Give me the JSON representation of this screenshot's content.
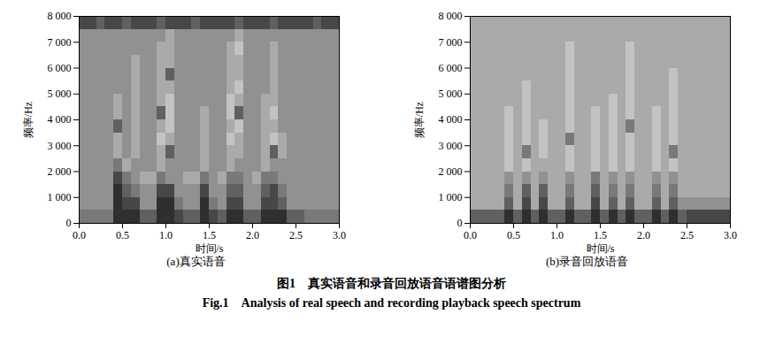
{
  "caption": "图1　真实语音和录音回放语音语谱图分析",
  "caption_en": "Fig.1　Analysis of real speech and recording playback speech spectrum",
  "chart_data": [
    {
      "type": "heatmap",
      "title": "(a)真实语音",
      "x_label": "时间/s",
      "y_label": "频率/Hz",
      "xlim": [
        0,
        3
      ],
      "ylim": [
        0,
        8000
      ],
      "xticks": [
        {
          "value": 0,
          "label": "0.0"
        },
        {
          "value": 0.5,
          "label": "0.5"
        },
        {
          "value": 1,
          "label": "1.0"
        },
        {
          "value": 1.5,
          "label": "1.5"
        },
        {
          "value": 2,
          "label": "2.0"
        },
        {
          "value": 2.5,
          "label": "2.5"
        },
        {
          "value": 3,
          "label": "3.0"
        }
      ],
      "yticks": [
        0,
        {
          "value": 1000,
          "label": "1 000"
        },
        {
          "value": 2000,
          "label": "2 000"
        },
        {
          "value": 3000,
          "label": "3 000"
        },
        {
          "value": 4000,
          "label": "4 000"
        },
        {
          "value": 5000,
          "label": "5 000"
        },
        {
          "value": 6000,
          "label": "6 000"
        },
        {
          "value": 7000,
          "label": "7 000"
        },
        {
          "value": 8000,
          "label": "8 000"
        }
      ],
      "x_edges": [
        0,
        0.1,
        0.2,
        0.3,
        0.4,
        0.5,
        0.6,
        0.7,
        0.8,
        0.9,
        1,
        1.1,
        1.2,
        1.3,
        1.4,
        1.5,
        1.6,
        1.7,
        1.8,
        1.9,
        2,
        2.1,
        2.2,
        2.3,
        2.4,
        2.5,
        2.6,
        2.7,
        2.8,
        2.9,
        3
      ],
      "y_edges": [
        0,
        500,
        1000,
        1500,
        2000,
        2500,
        3000,
        3500,
        4000,
        4500,
        5000,
        5500,
        6000,
        6500,
        7000,
        7500,
        8000
      ],
      "zlim": [
        0,
        9
      ],
      "cells": [
        [
          5,
          5,
          5,
          5,
          8,
          8,
          8,
          6,
          6,
          8,
          8,
          7,
          6,
          6,
          8,
          7,
          6,
          8,
          8,
          6,
          6,
          8,
          8,
          8,
          6,
          6,
          5,
          5,
          5,
          5
        ],
        [
          4,
          4,
          4,
          4,
          8,
          7,
          7,
          4,
          4,
          8,
          8,
          5,
          4,
          4,
          8,
          5,
          4,
          7,
          7,
          4,
          4,
          7,
          7,
          6,
          4,
          4,
          4,
          4,
          4,
          4
        ],
        [
          4,
          4,
          4,
          4,
          8,
          6,
          5,
          4,
          4,
          7,
          7,
          4,
          4,
          4,
          7,
          4,
          4,
          6,
          6,
          4,
          4,
          6,
          7,
          5,
          4,
          4,
          4,
          4,
          4,
          4
        ],
        [
          4,
          4,
          4,
          4,
          7,
          5,
          4,
          3,
          3,
          5,
          4,
          4,
          3,
          3,
          5,
          4,
          3,
          5,
          5,
          4,
          3,
          5,
          5,
          4,
          4,
          4,
          4,
          4,
          4,
          4
        ],
        [
          4,
          4,
          4,
          4,
          5,
          3,
          4,
          4,
          4,
          3,
          4,
          4,
          4,
          4,
          3,
          4,
          4,
          3,
          4,
          4,
          4,
          3,
          4,
          4,
          4,
          4,
          4,
          4,
          4,
          4
        ],
        [
          4,
          4,
          4,
          4,
          3,
          4,
          3,
          4,
          4,
          3,
          6,
          4,
          4,
          4,
          3,
          4,
          4,
          3,
          3,
          4,
          4,
          3,
          6,
          3,
          4,
          4,
          4,
          4,
          4,
          4
        ],
        [
          4,
          4,
          4,
          4,
          3,
          4,
          3,
          4,
          4,
          2,
          3,
          4,
          4,
          4,
          3,
          4,
          4,
          2,
          3,
          4,
          4,
          3,
          2,
          3,
          4,
          4,
          4,
          4,
          4,
          4
        ],
        [
          4,
          4,
          4,
          4,
          6,
          4,
          3,
          4,
          4,
          3,
          2,
          4,
          4,
          4,
          3,
          4,
          4,
          3,
          2,
          4,
          4,
          3,
          3,
          4,
          4,
          4,
          4,
          4,
          4,
          4
        ],
        [
          4,
          4,
          4,
          4,
          3,
          4,
          3,
          4,
          4,
          6,
          2,
          4,
          4,
          4,
          3,
          4,
          4,
          2,
          6,
          4,
          4,
          3,
          2,
          4,
          4,
          4,
          4,
          4,
          4,
          4
        ],
        [
          4,
          4,
          4,
          4,
          3,
          4,
          3,
          4,
          4,
          3,
          2,
          4,
          4,
          4,
          4,
          4,
          4,
          2,
          3,
          4,
          4,
          3,
          3,
          4,
          4,
          4,
          4,
          4,
          4,
          4
        ],
        [
          4,
          4,
          4,
          4,
          4,
          4,
          3,
          4,
          4,
          3,
          3,
          4,
          4,
          4,
          4,
          4,
          4,
          3,
          2,
          4,
          4,
          4,
          3,
          4,
          4,
          4,
          4,
          4,
          4,
          4
        ],
        [
          4,
          4,
          4,
          4,
          4,
          4,
          3,
          4,
          4,
          3,
          6,
          4,
          4,
          4,
          4,
          4,
          4,
          3,
          3,
          4,
          4,
          4,
          3,
          4,
          4,
          4,
          4,
          4,
          4,
          4
        ],
        [
          4,
          4,
          4,
          4,
          4,
          4,
          3,
          4,
          4,
          3,
          3,
          4,
          4,
          4,
          4,
          4,
          4,
          3,
          3,
          4,
          4,
          4,
          3,
          4,
          4,
          4,
          4,
          4,
          4,
          4
        ],
        [
          4,
          4,
          4,
          4,
          4,
          4,
          4,
          4,
          4,
          3,
          3,
          4,
          4,
          4,
          4,
          4,
          4,
          3,
          2,
          4,
          4,
          4,
          3,
          4,
          4,
          4,
          4,
          4,
          4,
          4
        ],
        [
          4,
          4,
          4,
          4,
          4,
          4,
          4,
          4,
          4,
          4,
          3,
          4,
          4,
          4,
          4,
          4,
          4,
          4,
          3,
          4,
          4,
          4,
          4,
          4,
          4,
          4,
          4,
          4,
          4,
          4
        ],
        [
          7,
          7,
          6,
          7,
          7,
          6,
          7,
          7,
          7,
          6,
          7,
          7,
          7,
          6,
          7,
          7,
          7,
          7,
          6,
          7,
          7,
          7,
          6,
          7,
          7,
          7,
          7,
          6,
          7,
          7
        ]
      ]
    },
    {
      "type": "heatmap",
      "title": "(b)录音回放语音",
      "x_label": "时间/s",
      "y_label": "频率/Hz",
      "xlim": [
        0,
        3
      ],
      "ylim": [
        0,
        8000
      ],
      "xticks": [
        {
          "value": 0,
          "label": "0.0"
        },
        {
          "value": 0.5,
          "label": "0.5"
        },
        {
          "value": 1,
          "label": "1.0"
        },
        {
          "value": 1.5,
          "label": "1.5"
        },
        {
          "value": 2,
          "label": "2.0"
        },
        {
          "value": 2.5,
          "label": "2.5"
        },
        {
          "value": 3,
          "label": "3.0"
        }
      ],
      "yticks": [
        0,
        {
          "value": 1000,
          "label": "1 000"
        },
        {
          "value": 2000,
          "label": "2 000"
        },
        {
          "value": 3000,
          "label": "3 000"
        },
        {
          "value": 4000,
          "label": "4 000"
        },
        {
          "value": 5000,
          "label": "5 000"
        },
        {
          "value": 6000,
          "label": "6 000"
        },
        {
          "value": 7000,
          "label": "7 000"
        },
        {
          "value": 8000,
          "label": "8 000"
        }
      ],
      "x_edges": [
        0,
        0.1,
        0.2,
        0.3,
        0.4,
        0.5,
        0.6,
        0.7,
        0.8,
        0.9,
        1,
        1.1,
        1.2,
        1.3,
        1.4,
        1.5,
        1.6,
        1.7,
        1.8,
        1.9,
        2,
        2.1,
        2.2,
        2.3,
        2.4,
        2.5,
        2.6,
        2.7,
        2.8,
        2.9,
        3
      ],
      "y_edges": [
        0,
        500,
        1000,
        1500,
        2000,
        2500,
        3000,
        3500,
        4000,
        4500,
        5000,
        5500,
        6000,
        6500,
        7000,
        7500,
        8000
      ],
      "zlim": [
        0,
        9
      ],
      "cells": [
        [
          6,
          6,
          6,
          6,
          8,
          6,
          8,
          6,
          8,
          6,
          6,
          8,
          6,
          6,
          8,
          6,
          8,
          6,
          8,
          6,
          6,
          8,
          6,
          8,
          6,
          7,
          7,
          7,
          7,
          7
        ],
        [
          3,
          3,
          3,
          3,
          6,
          3,
          7,
          3,
          7,
          3,
          3,
          6,
          3,
          3,
          7,
          3,
          6,
          3,
          6,
          3,
          3,
          6,
          3,
          6,
          4,
          4,
          4,
          4,
          4,
          4
        ],
        [
          3,
          3,
          3,
          3,
          5,
          3,
          6,
          3,
          6,
          3,
          3,
          5,
          3,
          3,
          6,
          3,
          5,
          3,
          5,
          3,
          3,
          5,
          3,
          5,
          3,
          3,
          3,
          3,
          3,
          3
        ],
        [
          3,
          3,
          3,
          3,
          4,
          3,
          4,
          3,
          4,
          3,
          3,
          4,
          3,
          3,
          5,
          3,
          4,
          3,
          4,
          3,
          3,
          4,
          3,
          4,
          3,
          3,
          3,
          3,
          3,
          3
        ],
        [
          3,
          3,
          3,
          3,
          2,
          3,
          2,
          3,
          3,
          3,
          3,
          2,
          3,
          3,
          2,
          3,
          2,
          3,
          2,
          3,
          3,
          2,
          3,
          2,
          3,
          3,
          3,
          3,
          3,
          3
        ],
        [
          3,
          3,
          3,
          3,
          2,
          3,
          5,
          3,
          2,
          3,
          3,
          2,
          3,
          3,
          2,
          3,
          2,
          3,
          2,
          3,
          3,
          2,
          3,
          5,
          3,
          3,
          3,
          3,
          3,
          3
        ],
        [
          3,
          3,
          3,
          3,
          2,
          3,
          2,
          3,
          2,
          3,
          3,
          5,
          3,
          3,
          2,
          3,
          2,
          3,
          2,
          3,
          3,
          2,
          3,
          2,
          3,
          3,
          3,
          3,
          3,
          3
        ],
        [
          3,
          3,
          3,
          3,
          2,
          3,
          2,
          3,
          2,
          3,
          3,
          2,
          3,
          3,
          2,
          3,
          2,
          3,
          5,
          3,
          3,
          2,
          3,
          2,
          3,
          3,
          3,
          3,
          3,
          3
        ],
        [
          3,
          3,
          3,
          3,
          2,
          3,
          2,
          3,
          3,
          3,
          3,
          2,
          3,
          3,
          2,
          3,
          2,
          3,
          2,
          3,
          3,
          2,
          3,
          2,
          3,
          3,
          3,
          3,
          3,
          3
        ],
        [
          3,
          3,
          3,
          3,
          3,
          3,
          2,
          3,
          3,
          3,
          3,
          2,
          3,
          3,
          3,
          3,
          2,
          3,
          2,
          3,
          3,
          3,
          3,
          2,
          3,
          3,
          3,
          3,
          3,
          3
        ],
        [
          3,
          3,
          3,
          3,
          3,
          3,
          2,
          3,
          3,
          3,
          3,
          2,
          3,
          3,
          3,
          3,
          3,
          3,
          2,
          3,
          3,
          3,
          3,
          2,
          3,
          3,
          3,
          3,
          3,
          3
        ],
        [
          3,
          3,
          3,
          3,
          3,
          3,
          3,
          3,
          3,
          3,
          3,
          2,
          3,
          3,
          3,
          3,
          3,
          3,
          2,
          3,
          3,
          3,
          3,
          2,
          3,
          3,
          3,
          3,
          3,
          3
        ],
        [
          3,
          3,
          3,
          3,
          3,
          3,
          3,
          3,
          3,
          3,
          3,
          2,
          3,
          3,
          3,
          3,
          3,
          3,
          2,
          3,
          3,
          3,
          3,
          3,
          3,
          3,
          3,
          3,
          3,
          3
        ],
        [
          3,
          3,
          3,
          3,
          3,
          3,
          3,
          3,
          3,
          3,
          3,
          2,
          3,
          3,
          3,
          3,
          3,
          3,
          2,
          3,
          3,
          3,
          3,
          3,
          3,
          3,
          3,
          3,
          3,
          3
        ],
        [
          3,
          3,
          3,
          3,
          3,
          3,
          3,
          3,
          3,
          3,
          3,
          3,
          3,
          3,
          3,
          3,
          3,
          3,
          3,
          3,
          3,
          3,
          3,
          3,
          3,
          3,
          3,
          3,
          3,
          3
        ],
        [
          3,
          3,
          3,
          3,
          3,
          3,
          3,
          3,
          3,
          3,
          3,
          3,
          3,
          3,
          3,
          3,
          3,
          3,
          3,
          3,
          3,
          3,
          3,
          3,
          3,
          3,
          3,
          3,
          3,
          3
        ]
      ]
    }
  ]
}
